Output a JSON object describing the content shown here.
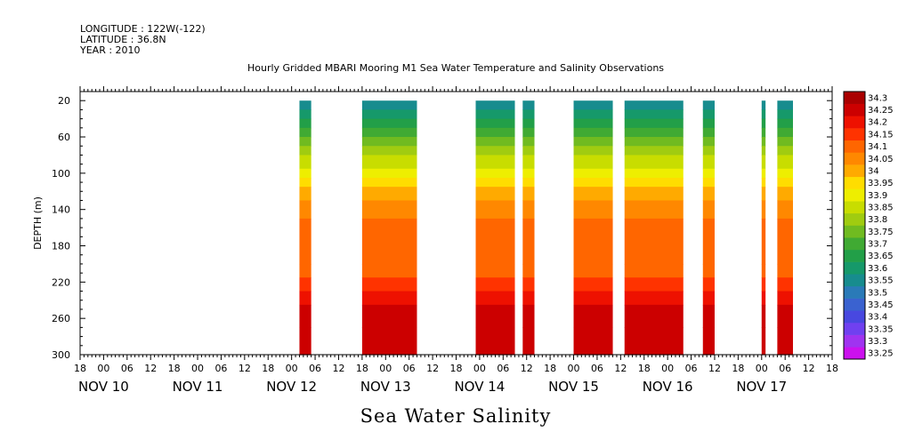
{
  "header": {
    "longitude": "LONGITUDE : 122W(-122)",
    "latitude": "LATITUDE : 36.8N",
    "year": "YEAR : 2010"
  },
  "chart_data": {
    "type": "heatmap",
    "title": "Hourly Gridded MBARI Mooring M1 Sea Water Temperature and Salinity Observations",
    "xlabel": "Sea Water Salinity",
    "ylabel": "DEPTH (m)",
    "x_axis": {
      "start": "2010-11-09T18:00",
      "end": "2010-11-17T18:00",
      "tick_hours": [
        "18",
        "00",
        "06",
        "12",
        "18",
        "00",
        "06",
        "12",
        "18",
        "00",
        "06",
        "12",
        "18",
        "00",
        "06",
        "12",
        "18",
        "00",
        "06",
        "12",
        "18",
        "00",
        "06",
        "12",
        "18",
        "00",
        "06",
        "12",
        "18",
        "00",
        "06",
        "12",
        "18"
      ],
      "date_labels": [
        "NOV 10",
        "NOV 11",
        "NOV 12",
        "NOV 13",
        "NOV 14",
        "NOV 15",
        "NOV 16",
        "NOV 17"
      ]
    },
    "y_axis": {
      "ylim": [
        300,
        10
      ],
      "inverted": true,
      "ticks": [
        20,
        60,
        100,
        140,
        180,
        220,
        260,
        300
      ]
    },
    "colorbar": {
      "levels": [
        33.25,
        33.3,
        33.35,
        33.4,
        33.45,
        33.5,
        33.55,
        33.6,
        33.65,
        33.7,
        33.75,
        33.8,
        33.85,
        33.9,
        33.95,
        34,
        34.05,
        34.1,
        34.15,
        34.2,
        34.25,
        34.3
      ],
      "colors": [
        "#cc11ee",
        "#a033f0",
        "#7040f0",
        "#4848e0",
        "#3a62d0",
        "#2a7ab8",
        "#178c8e",
        "#16996a",
        "#229f48",
        "#40aa33",
        "#70bb20",
        "#a0cc10",
        "#c8dd00",
        "#eeee00",
        "#ffdd00",
        "#ffaa00",
        "#ff8800",
        "#ff6600",
        "#ff3300",
        "#ee1100",
        "#cc0000",
        "#aa0000"
      ]
    },
    "segments": [
      {
        "start": "2010-11-12T02:00",
        "end": "2010-11-12T05:00"
      },
      {
        "start": "2010-11-12T18:00",
        "end": "2010-11-13T08:00"
      },
      {
        "start": "2010-11-13T23:00",
        "end": "2010-11-14T09:00"
      },
      {
        "start": "2010-11-14T11:00",
        "end": "2010-11-14T14:00"
      },
      {
        "start": "2010-11-15T00:00",
        "end": "2010-11-15T10:00"
      },
      {
        "start": "2010-11-15T13:00",
        "end": "2010-11-16T04:00"
      },
      {
        "start": "2010-11-16T09:00",
        "end": "2010-11-16T12:00"
      },
      {
        "start": "2010-11-17T00:00",
        "end": "2010-11-17T01:00"
      },
      {
        "start": "2010-11-17T04:00",
        "end": "2010-11-17T08:00"
      }
    ],
    "depth_profile": [
      {
        "depth": 20,
        "value": 33.55
      },
      {
        "depth": 30,
        "value": 33.6
      },
      {
        "depth": 40,
        "value": 33.65
      },
      {
        "depth": 50,
        "value": 33.7
      },
      {
        "depth": 60,
        "value": 33.75
      },
      {
        "depth": 70,
        "value": 33.8
      },
      {
        "depth": 80,
        "value": 33.85
      },
      {
        "depth": 95,
        "value": 33.9
      },
      {
        "depth": 105,
        "value": 33.95
      },
      {
        "depth": 115,
        "value": 34
      },
      {
        "depth": 130,
        "value": 34.05
      },
      {
        "depth": 150,
        "value": 34.1
      },
      {
        "depth": 200,
        "value": 34.1
      },
      {
        "depth": 215,
        "value": 34.15
      },
      {
        "depth": 230,
        "value": 34.2
      },
      {
        "depth": 245,
        "value": 34.25
      },
      {
        "depth": 270,
        "value": 34.25
      },
      {
        "depth": 300,
        "value": 34.2
      }
    ]
  }
}
